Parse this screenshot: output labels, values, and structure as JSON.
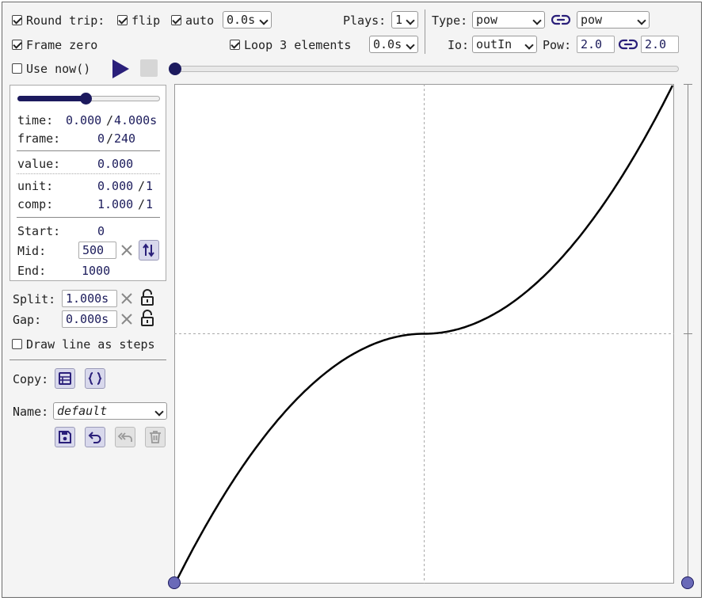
{
  "toolbar": {
    "round_trip_label": "Round trip:",
    "flip_label": "flip",
    "auto_label": "auto",
    "auto_delay": "0.0s",
    "plays_label": "Plays:",
    "plays_value": "1",
    "type_label": "Type:",
    "type_value": "pow",
    "type_value_2": "pow",
    "frame_zero_label": "Frame zero",
    "loop_label": "Loop 3 elements",
    "loop_delay": "0.0s",
    "io_label": "Io:",
    "io_value": "outIn",
    "pow_label": "Pow:",
    "pow_value": "2.0",
    "pow_value_2": "2.0",
    "use_now_label": "Use now()",
    "progress": 0
  },
  "panel": {
    "slider_fraction": 0.5,
    "time_label": "time:",
    "time_value": "0.000",
    "time_sep": "/",
    "time_total": "4.000s",
    "frame_label": "frame:",
    "frame_value": "0",
    "frame_sep": "/",
    "frame_total": "240",
    "value_label": "value:",
    "value_value": "0.000",
    "unit_label": "unit:",
    "unit_value": "0.000",
    "unit_sep": "/",
    "unit_total": "1",
    "comp_label": "comp:",
    "comp_value": "1.000",
    "comp_sep": "/",
    "comp_total": "1",
    "start_label": "Start:",
    "start_value": "0",
    "mid_label": "Mid:",
    "mid_value": "500",
    "end_label": "End:",
    "end_value": "1000"
  },
  "timing": {
    "split_label": "Split:",
    "split_value": "1.000s",
    "gap_label": "Gap:",
    "gap_value": "0.000s",
    "steps_label": "Draw line as steps"
  },
  "copy": {
    "copy_label": "Copy:",
    "name_label": "Name:",
    "name_value": "default"
  },
  "colors": {
    "accent": "#2a1f7a",
    "handle": "#6a6ab8"
  }
}
